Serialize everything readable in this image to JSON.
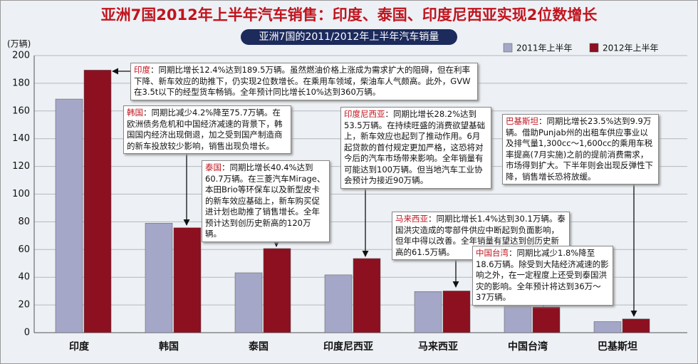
{
  "chart_data": {
    "type": "bar",
    "title": "亚洲7国2012年上半年汽车销售：印度、泰国、印度尼西亚实现2位数增长",
    "subtitle": "亚洲7国的2011/2012年上半年汽车销量",
    "y_label": "(万辆)",
    "categories": [
      "印度",
      "韩国",
      "泰国",
      "印度尼西亚",
      "马来西亚",
      "中国台湾",
      "巴基斯坦"
    ],
    "series": [
      {
        "name": "2011年上半年",
        "color": "#a4a7c8",
        "values": [
          168.6,
          79.0,
          43.2,
          41.7,
          29.7,
          18.9,
          8.0
        ]
      },
      {
        "name": "2012年上半年",
        "color": "#8c1020",
        "values": [
          189.5,
          75.7,
          60.7,
          53.5,
          30.1,
          18.6,
          9.9
        ]
      }
    ],
    "ylim": [
      0,
      200
    ],
    "yticks": [
      0,
      20,
      40,
      60,
      80,
      100,
      120,
      140,
      160,
      180,
      200
    ],
    "grid": true,
    "annotations": [
      {
        "label": "印度",
        "text": "：同期比增长12.4%达到189.5万辆。虽然燃油价格上涨成为需求扩大的阻碍，但在利率下降、新车效应的助推下，仍实现2位数增长。在乘用车领域，柴油车人气颇高。此外，GVW在3.5t以下的经型货车畅销。全年预计同比增长10%达到360万辆。"
      },
      {
        "label": "韩国",
        "text": "：同期比减少4.2%降至75.7万辆。在欧洲债务危机和中国经济减速的背景下，韩国国内经济出现倒退，加之受到国产制造商的新车投放较少影响，销售出现负增长。"
      },
      {
        "label": "泰国",
        "text": "：同期比增长40.4%达到60.7万辆。在三菱汽车Mirage、本田Brio等环保车以及新型皮卡的新车效应基础上，新车购买促进计划也助推了销售增长。全年预计达到创历史新高的120万辆。"
      },
      {
        "label": "印度尼西亚",
        "text": "：同期比增长28.2%达到53.5万辆。在持续旺盛的消费欲望基础上，新车效应也起到了推动作用。6月起贷款的首付规定更加严格，这恐将对今后的汽车市场带来影响。全年销量有可能达到100万辆。但当地汽车工业协会预计为接近90万辆。"
      },
      {
        "label": "马来西亚",
        "text": "：同期比增长1.4%达到30.1万辆。泰国洪灾造成的零部件供应中断起到负面影响，但年中得以改善。全年销量有望达到创历史新高的61.5万辆。"
      },
      {
        "label": "中国台湾",
        "text": "：同期比减少1.8%降至18.6万辆。除受到大陆经济减速的影响之外，在一定程度上还受到泰国洪灾的影响。全年预计将达到36万～37万辆。"
      },
      {
        "label": "巴基斯坦",
        "text": "：同期比增长23.5%达到9.9万辆。借助Punjab州的出租车供应事业以及排气量1,300cc～1,600cc的乘用车税率提高(7月实施)之前的提前消费需求，市场得到扩大。下半年则会出现反弹性下降，销售增长恐将放缓。"
      }
    ]
  }
}
